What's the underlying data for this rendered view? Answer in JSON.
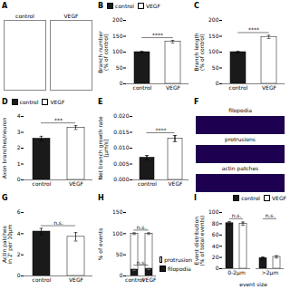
{
  "chart_data": [
    {
      "type": "illustration",
      "title": "A",
      "categories": [
        "control",
        "VEGF"
      ]
    },
    {
      "type": "bar",
      "title": "B",
      "categories": [
        "control",
        "VEGF"
      ],
      "values": [
        100,
        133
      ],
      "errors": [
        3,
        4
      ],
      "colors": [
        "#1a1a1a",
        "#ffffff"
      ],
      "ylabel": "Branch number\n(% of control)",
      "ylim": [
        0,
        200
      ],
      "yticks": [
        0,
        50,
        100,
        150,
        200
      ],
      "annotations": [
        {
          "text": "****"
        }
      ],
      "legend": "top-left"
    },
    {
      "type": "bar",
      "title": "C",
      "categories": [
        "control",
        "VEGF"
      ],
      "values": [
        100,
        148
      ],
      "errors": [
        3,
        5
      ],
      "colors": [
        "#1a1a1a",
        "#ffffff"
      ],
      "ylabel": "Branch length\n(% of control)",
      "ylim": [
        0,
        200
      ],
      "yticks": [
        0,
        50,
        100,
        150,
        200
      ],
      "annotations": [
        {
          "text": "****"
        }
      ]
    },
    {
      "type": "bar",
      "title": "D",
      "categories": [
        "control",
        "VEGF"
      ],
      "values": [
        2.6,
        3.3
      ],
      "errors": [
        0.15,
        0.12
      ],
      "colors": [
        "#1a1a1a",
        "#ffffff"
      ],
      "ylabel": "Axon branches/neuron",
      "ylim": [
        0,
        4
      ],
      "yticks": [
        0,
        1,
        2,
        3,
        4
      ],
      "annotations": [
        {
          "text": "***"
        }
      ],
      "legend": "top-left"
    },
    {
      "type": "bar",
      "title": "E",
      "categories": [
        "control",
        "VEGF"
      ],
      "values": [
        0.007,
        0.013
      ],
      "errors": [
        0.0007,
        0.001
      ],
      "colors": [
        "#1a1a1a",
        "#ffffff"
      ],
      "ylabel": "Net branch growth rate\n[μm/s]",
      "ylim": [
        0,
        0.02
      ],
      "yticks": [
        {
          "value": 0,
          "label": "0.000"
        },
        0.005,
        {
          "value": 0.01,
          "label": "0.010"
        },
        0.015,
        {
          "value": 0.02,
          "label": "0.020"
        }
      ],
      "annotations": [
        {
          "text": "****"
        }
      ]
    },
    {
      "type": "illustration",
      "title": "F",
      "categories": [
        "filopodia",
        "protrusions",
        "actin patches"
      ],
      "color": "#1e0050"
    },
    {
      "type": "bar",
      "title": "G",
      "categories": [
        "control",
        "VEGF"
      ],
      "values": [
        4.2,
        3.7
      ],
      "errors": [
        0.3,
        0.4
      ],
      "colors": [
        "#1a1a1a",
        "#ffffff"
      ],
      "ylabel": "Actin patches\nin 2' per 10μm",
      "ylim": [
        0,
        6
      ],
      "yticks": [
        0,
        2,
        4,
        6
      ],
      "annotations": [
        {
          "text": "n.s."
        }
      ]
    },
    {
      "type": "bar",
      "title": "H",
      "stacked": true,
      "categories": [
        "control",
        "VEGF"
      ],
      "series": [
        {
          "name": "filopodia",
          "color": "#1a1a1a",
          "values": [
            15,
            17
          ],
          "errors": [
            2,
            2
          ]
        },
        {
          "name": "protrusion",
          "color": "#ffffff",
          "values": [
            85,
            83
          ],
          "errors": [
            2,
            2
          ]
        }
      ],
      "ylabel": "% of events",
      "ylim": [
        0,
        150
      ],
      "yticks": [
        0,
        50,
        100,
        150
      ],
      "annotations": [
        {
          "text": "n.s.",
          "series": "filopodia"
        },
        {
          "text": "n.s.",
          "series": "protrusion"
        }
      ],
      "legend": "right"
    },
    {
      "type": "bar",
      "title": "I",
      "categories": [
        "0-2μm",
        ">2μm"
      ],
      "series": [
        {
          "name": "control",
          "color": "#1a1a1a",
          "values": [
            81,
            19
          ],
          "errors": [
            3,
            2
          ]
        },
        {
          "name": "VEGF",
          "color": "#ffffff",
          "values": [
            80,
            21
          ],
          "errors": [
            3,
            2
          ]
        }
      ],
      "xlabel": "event size",
      "ylabel": "Event distribution\n(% of total events)",
      "ylim": [
        0,
        100
      ],
      "yticks": [
        0,
        20,
        40,
        60,
        80,
        100
      ],
      "annotations": [
        {
          "text": "n.s.",
          "category": "0-2μm"
        },
        {
          "text": "n.s.",
          "category": ">2μm"
        }
      ],
      "legend": "top-right"
    }
  ]
}
